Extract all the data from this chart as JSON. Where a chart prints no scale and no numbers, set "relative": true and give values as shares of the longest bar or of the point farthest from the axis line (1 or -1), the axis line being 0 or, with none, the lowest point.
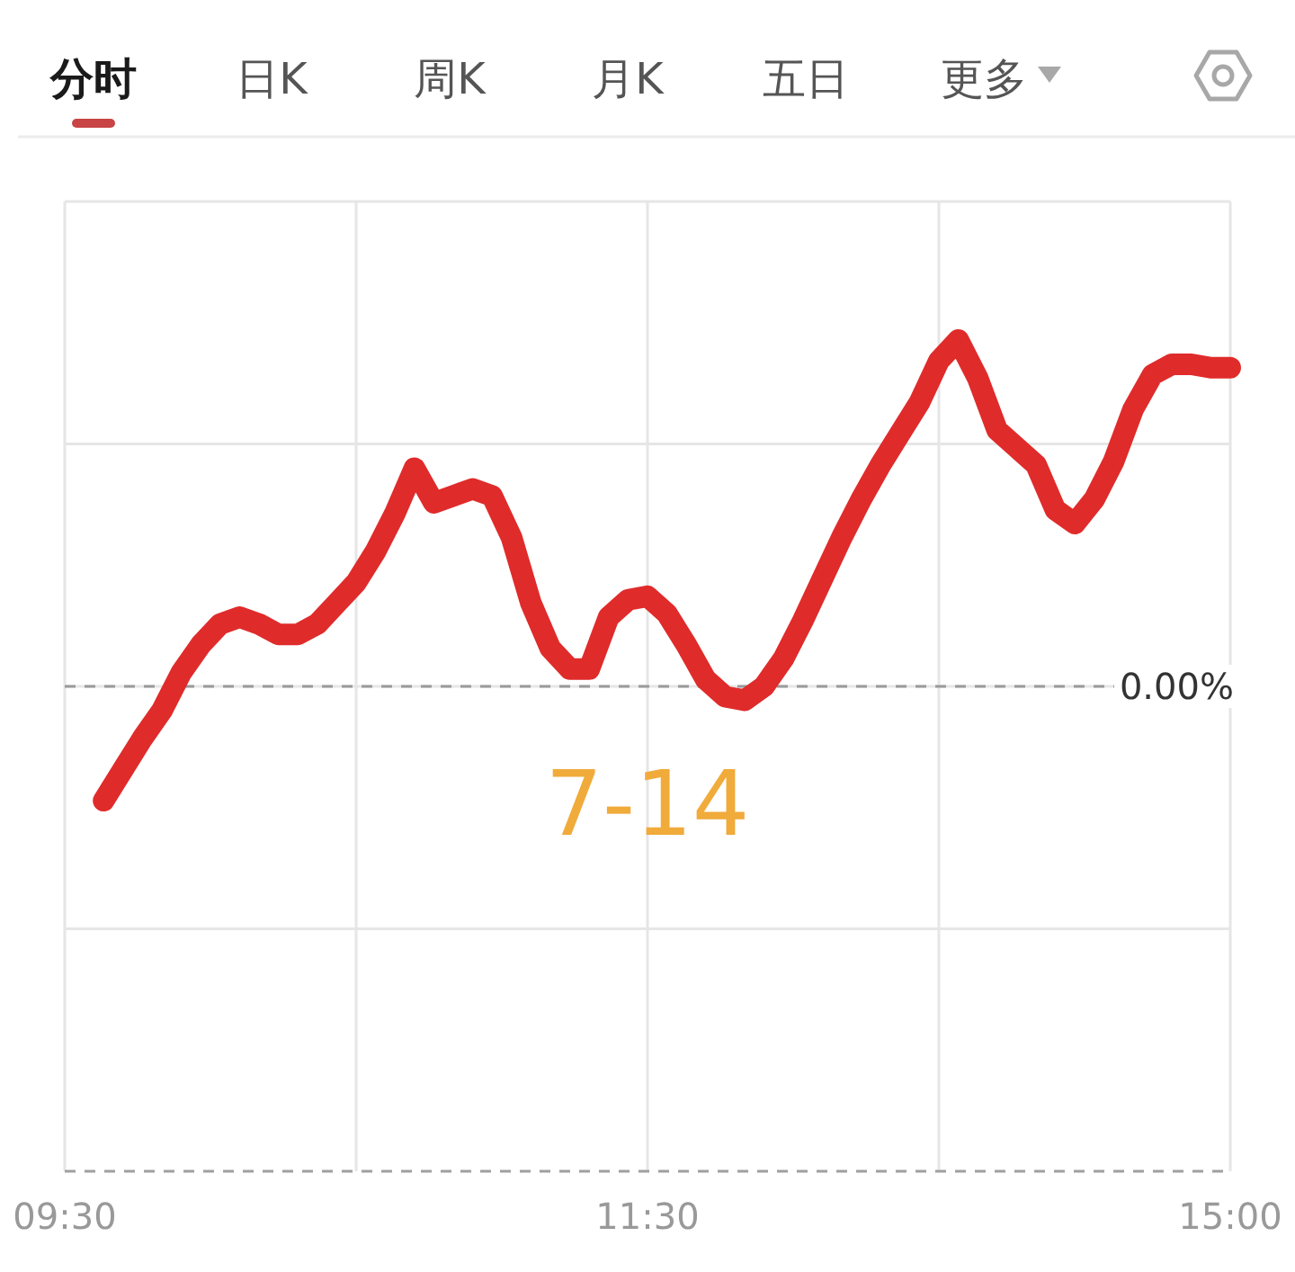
{
  "chart_data": [
    {
      "type": "other",
      "annotations": [
        "分时",
        "日K",
        "周K",
        "月K",
        "五日",
        "更多"
      ]
    },
    {
      "type": "line",
      "relative": true,
      "categories": [
        "09:30",
        null,
        null,
        null,
        null,
        null,
        null,
        null,
        null,
        null,
        null,
        null,
        null,
        null,
        null,
        null,
        null,
        null,
        null,
        null,
        null,
        null,
        null,
        null,
        null,
        null,
        null,
        null,
        null,
        null,
        "11:30",
        null,
        null,
        null,
        null,
        null,
        null,
        null,
        null,
        null,
        null,
        null,
        null,
        null,
        null,
        null,
        null,
        null,
        null,
        null,
        null,
        null,
        null,
        null,
        null,
        null,
        null,
        null,
        null,
        null,
        "15:00"
      ],
      "series": [
        {
          "color": "#e02b2b",
          "values": [
            null,
            null,
            -0.33,
            -0.24,
            -0.15,
            -0.07,
            0.04,
            0.12,
            0.18,
            0.2,
            0.18,
            0.15,
            0.15,
            0.18,
            0.24,
            0.3,
            0.39,
            0.5,
            0.63,
            0.53,
            0.55,
            0.57,
            0.55,
            0.43,
            0.24,
            0.11,
            0.05,
            0.05,
            0.2,
            0.25,
            0.26,
            0.21,
            0.12,
            0.02,
            -0.03,
            -0.04,
            0,
            0.08,
            0.19,
            0.31,
            0.43,
            0.54,
            0.64,
            0.73,
            0.82,
            0.94,
            1,
            0.89,
            0.74,
            0.69,
            0.64,
            0.51,
            0.47,
            0.54,
            0.65,
            0.8,
            0.9,
            0.93,
            0.93,
            0.92,
            0.92
          ]
        }
      ],
      "grid": true,
      "ref_lines": [
        {
          "axis": "y",
          "value": 0,
          "label": "0.00%",
          "color": "#9a9a9a",
          "line_style": "dashed"
        }
      ],
      "annotations": [
        "7-14"
      ]
    }
  ]
}
